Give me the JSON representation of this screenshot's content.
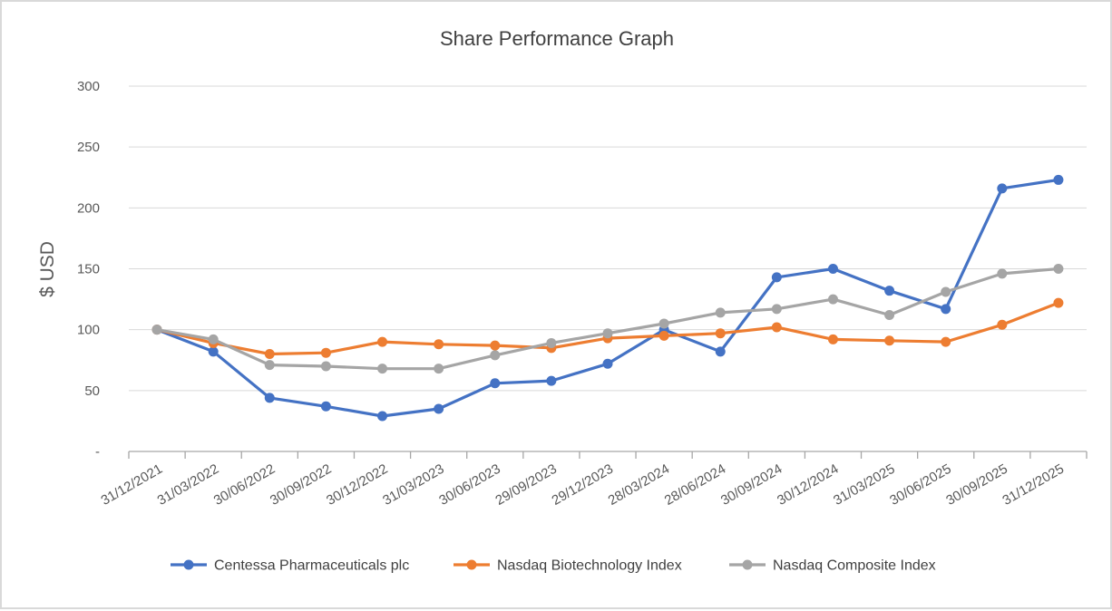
{
  "chart_data": {
    "type": "line",
    "title": "Share Performance Graph",
    "xlabel": "",
    "ylabel": "$ USD",
    "ylim": [
      0,
      300
    ],
    "yticks": [
      {
        "value": 0,
        "label": "-"
      },
      {
        "value": 50,
        "label": "50"
      },
      {
        "value": 100,
        "label": "100"
      },
      {
        "value": 150,
        "label": "150"
      },
      {
        "value": 200,
        "label": "200"
      },
      {
        "value": 250,
        "label": "250"
      },
      {
        "value": 300,
        "label": "300"
      }
    ],
    "grid": true,
    "legend_position": "bottom",
    "categories": [
      "31/12/2021",
      "31/03/2022",
      "30/06/2022",
      "30/09/2022",
      "30/12/2022",
      "31/03/2023",
      "30/06/2023",
      "29/09/2023",
      "29/12/2023",
      "28/03/2024",
      "28/06/2024",
      "30/09/2024",
      "30/12/2024",
      "31/03/2025",
      "30/06/2025",
      "30/09/2025",
      "31/12/2025"
    ],
    "series": [
      {
        "name": "Centessa Pharmaceuticals plc",
        "color": "#4472C4",
        "values": [
          100,
          82,
          44,
          37,
          29,
          35,
          56,
          58,
          72,
          100,
          82,
          143,
          150,
          132,
          117,
          216,
          223
        ]
      },
      {
        "name": "Nasdaq Biotechnology Index",
        "color": "#ED7D31",
        "values": [
          100,
          89,
          80,
          81,
          90,
          88,
          87,
          85,
          93,
          95,
          97,
          102,
          92,
          91,
          90,
          104,
          122
        ]
      },
      {
        "name": "Nasdaq Composite Index",
        "color": "#A5A5A5",
        "values": [
          100,
          92,
          71,
          70,
          68,
          68,
          79,
          89,
          97,
          105,
          114,
          117,
          125,
          112,
          131,
          146,
          150
        ]
      }
    ]
  }
}
